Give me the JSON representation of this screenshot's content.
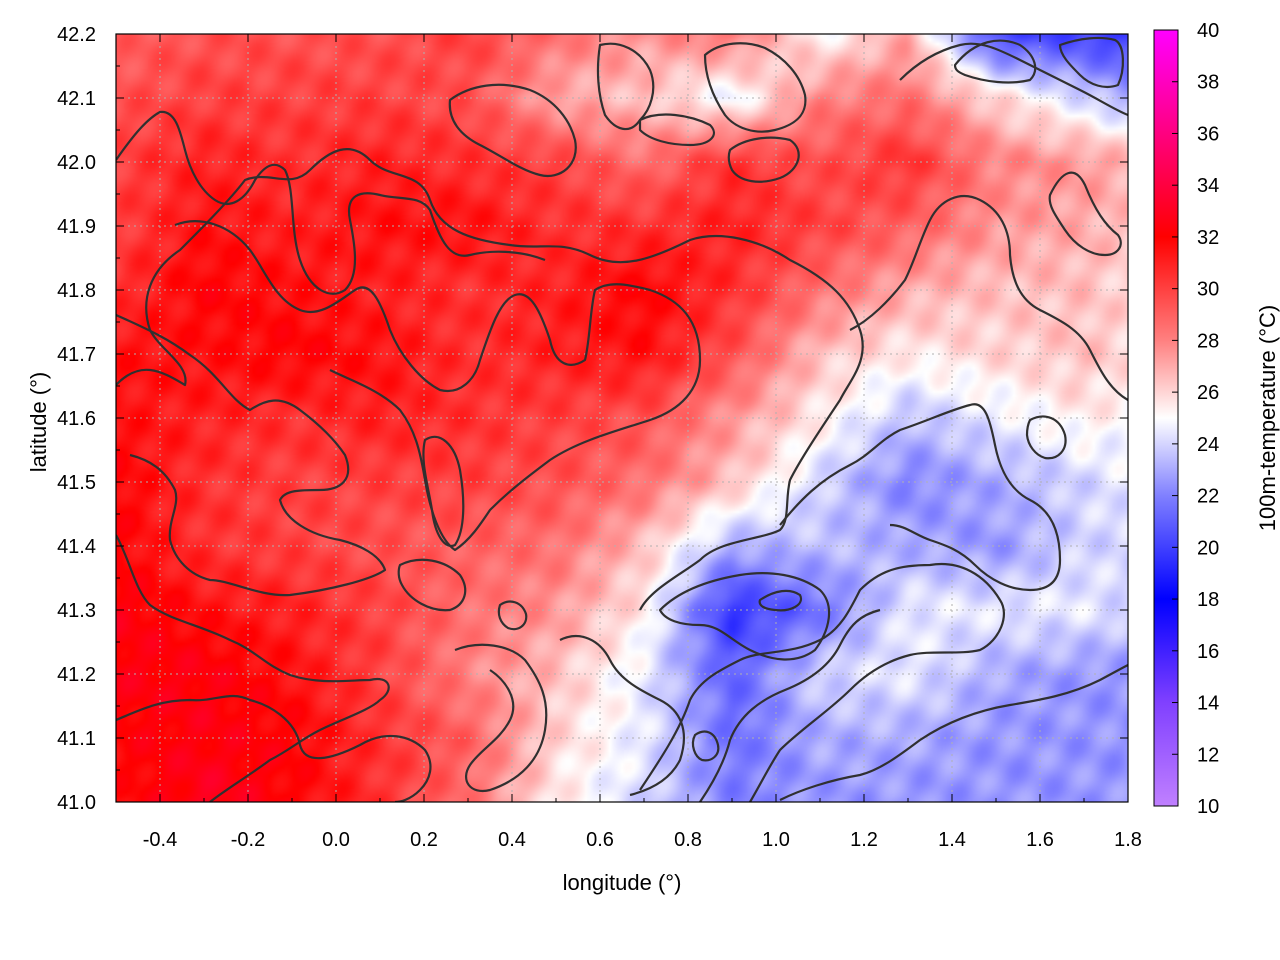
{
  "chart_data": {
    "type": "heatmap",
    "title": "",
    "xlabel": "longitude (°)",
    "ylabel": "latitude (°)",
    "colorbar_label": "100m-temperature (°C)",
    "xlim": [
      -0.5,
      1.8
    ],
    "ylim": [
      41.0,
      42.2
    ],
    "clim": [
      10,
      40
    ],
    "x_ticks": [
      "-0.4",
      "-0.2",
      "0.0",
      "0.2",
      "0.4",
      "0.6",
      "0.8",
      "1.0",
      "1.2",
      "1.4",
      "1.6",
      "1.8"
    ],
    "x_tick_values": [
      -0.4,
      -0.2,
      0.0,
      0.2,
      0.4,
      0.6,
      0.8,
      1.0,
      1.2,
      1.4,
      1.6,
      1.8
    ],
    "y_ticks": [
      "41.0",
      "41.1",
      "41.2",
      "41.3",
      "41.4",
      "41.5",
      "41.6",
      "41.7",
      "41.8",
      "41.9",
      "42.0",
      "42.1",
      "42.2"
    ],
    "y_tick_values": [
      41.0,
      41.1,
      41.2,
      41.3,
      41.4,
      41.5,
      41.6,
      41.7,
      41.8,
      41.9,
      42.0,
      42.1,
      42.2
    ],
    "colorbar_ticks": [
      "10",
      "12",
      "14",
      "16",
      "18",
      "20",
      "22",
      "24",
      "26",
      "28",
      "30",
      "32",
      "34",
      "36",
      "38",
      "40"
    ],
    "colorbar_tick_values": [
      10,
      12,
      14,
      16,
      18,
      20,
      22,
      24,
      26,
      28,
      30,
      32,
      34,
      36,
      38,
      40
    ],
    "colormap": [
      [
        10,
        "#c080ff"
      ],
      [
        14,
        "#8040ff"
      ],
      [
        18,
        "#0000ff"
      ],
      [
        22,
        "#8080ff"
      ],
      [
        25,
        "#ffffff"
      ],
      [
        28,
        "#ff8080"
      ],
      [
        32,
        "#ff0000"
      ],
      [
        36,
        "#ff0080"
      ],
      [
        40,
        "#ff00ff"
      ]
    ],
    "grid": true,
    "grid_lon": [
      -0.4,
      -0.2,
      0.0,
      0.2,
      0.4,
      0.6,
      0.8,
      1.0,
      1.2,
      1.4,
      1.6
    ],
    "grid_lat": [
      41.1,
      41.2,
      41.3,
      41.4,
      41.5,
      41.6,
      41.7,
      41.8,
      41.9,
      42.0,
      42.1
    ],
    "temperature_field": {
      "lon": [
        -0.5,
        -0.3,
        -0.1,
        0.1,
        0.3,
        0.5,
        0.7,
        0.9,
        1.1,
        1.3,
        1.5,
        1.7,
        1.8
      ],
      "lat": [
        41.0,
        41.1,
        41.2,
        41.3,
        41.4,
        41.5,
        41.6,
        41.7,
        41.8,
        41.9,
        42.0,
        42.1,
        42.2
      ],
      "values": [
        [
          31.5,
          33.0,
          32.0,
          30.5,
          28.5,
          25.5,
          24.0,
          22.0,
          22.5,
          22.5,
          22.5,
          22.5,
          22.5
        ],
        [
          32.0,
          32.5,
          32.0,
          30.5,
          29.0,
          26.0,
          24.5,
          21.5,
          23.0,
          23.0,
          22.5,
          22.5,
          22.5
        ],
        [
          32.5,
          32.5,
          31.5,
          30.0,
          28.0,
          26.5,
          24.5,
          21.0,
          24.0,
          24.5,
          23.0,
          22.5,
          22.5
        ],
        [
          32.5,
          31.5,
          31.0,
          30.0,
          28.5,
          27.5,
          25.5,
          19.5,
          21.5,
          24.5,
          24.5,
          24.5,
          24.0
        ],
        [
          32.0,
          30.5,
          30.0,
          29.5,
          29.0,
          28.5,
          26.5,
          23.0,
          23.5,
          23.0,
          22.5,
          24.0,
          24.0
        ],
        [
          32.0,
          30.5,
          30.0,
          30.0,
          30.0,
          29.5,
          28.5,
          26.5,
          24.0,
          22.0,
          23.0,
          24.0,
          24.5
        ],
        [
          31.5,
          31.0,
          30.5,
          31.0,
          30.5,
          30.0,
          29.5,
          27.5,
          25.5,
          23.5,
          24.5,
          25.5,
          25.0
        ],
        [
          31.5,
          31.5,
          32.0,
          31.5,
          30.5,
          31.0,
          31.5,
          29.5,
          26.5,
          25.5,
          26.0,
          26.5,
          26.0
        ],
        [
          30.5,
          32.0,
          31.5,
          31.0,
          30.5,
          31.0,
          32.0,
          30.5,
          28.5,
          27.0,
          26.5,
          26.5,
          26.0
        ],
        [
          30.0,
          31.5,
          31.0,
          31.5,
          31.5,
          30.5,
          30.5,
          31.0,
          30.0,
          29.0,
          27.5,
          27.0,
          26.5
        ],
        [
          30.0,
          31.0,
          30.5,
          31.0,
          30.5,
          30.0,
          28.5,
          30.5,
          29.5,
          30.5,
          28.0,
          27.5,
          27.0
        ],
        [
          29.5,
          30.0,
          30.0,
          30.0,
          29.5,
          27.0,
          26.5,
          24.5,
          28.0,
          28.5,
          26.0,
          24.0,
          23.0
        ],
        [
          29.0,
          29.5,
          29.5,
          29.5,
          30.0,
          28.5,
          27.5,
          28.5,
          25.0,
          27.0,
          20.0,
          20.0,
          19.5
        ]
      ]
    }
  }
}
